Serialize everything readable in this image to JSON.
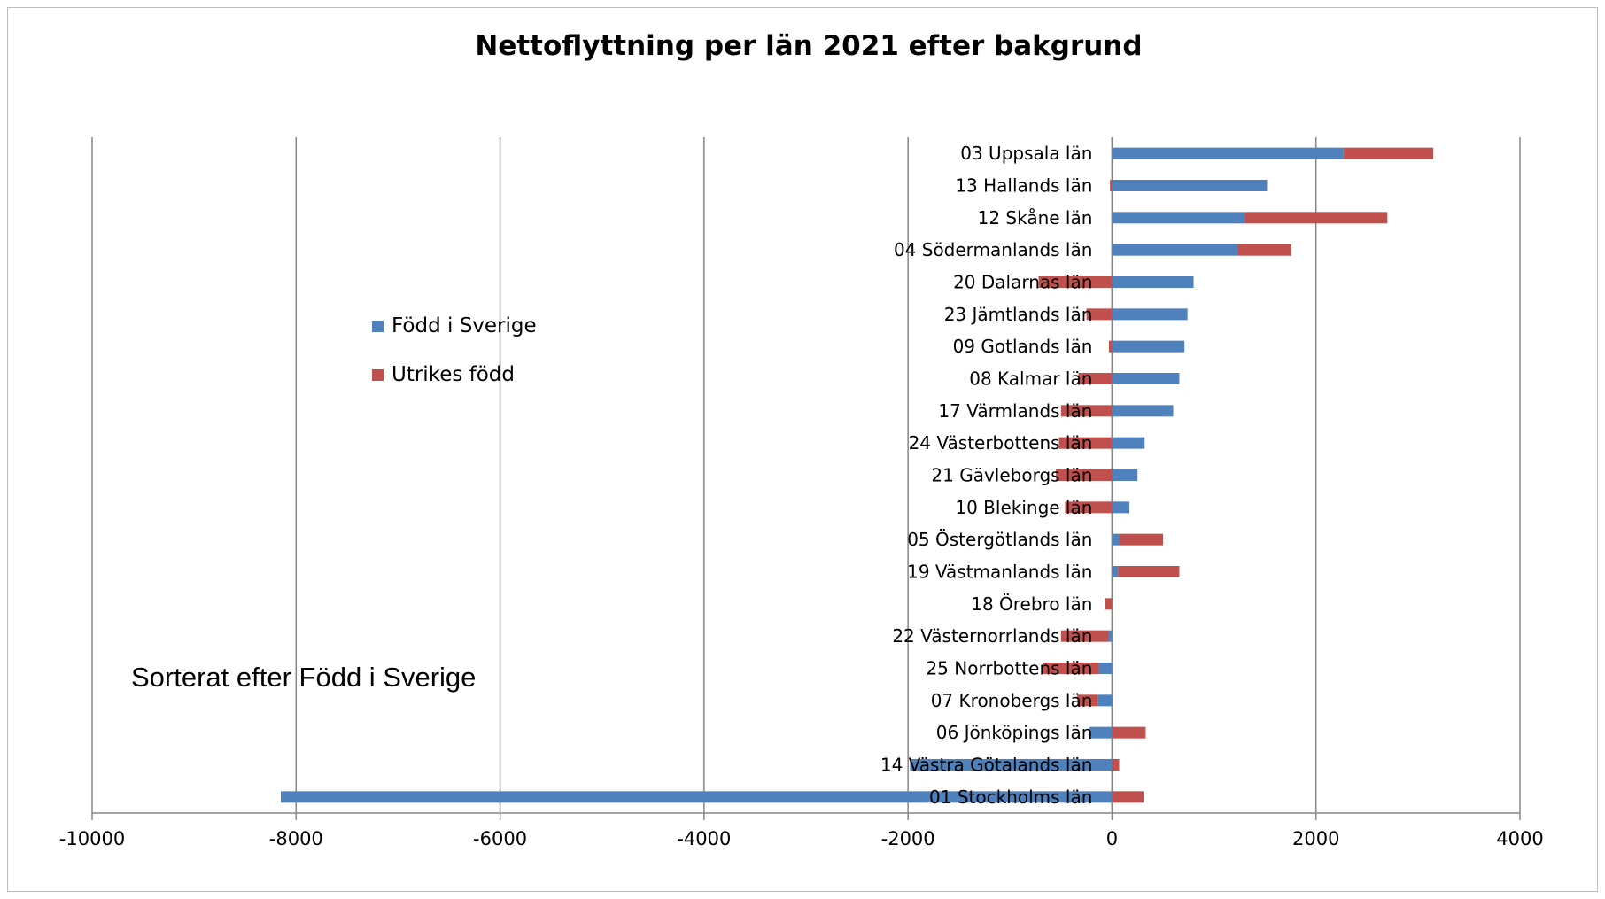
{
  "chart_data": {
    "type": "bar",
    "orientation": "horizontal",
    "stacked": true,
    "title": "Nettoflyttning per län 2021 efter bakgrund",
    "xlabel": "",
    "ylabel": "",
    "xlim": [
      -10000,
      4000
    ],
    "x_ticks": [
      "-10000",
      "-8000",
      "-6000",
      "-4000",
      "-2000",
      "0",
      "2000",
      "4000"
    ],
    "grid": "vertical major gridlines",
    "legend_position": "center-left",
    "note": "Sorterat efter Född i Sverige",
    "categories": [
      "03 Uppsala län",
      "13 Hallands län",
      "12 Skåne län",
      "04 Södermanlands län",
      "20 Dalarnas län",
      "23 Jämtlands län",
      "09 Gotlands län",
      "08 Kalmar län",
      "17 Värmlands län",
      "24 Västerbottens län",
      "21 Gävleborgs län",
      "10 Blekinge län",
      "05 Östergötlands län",
      "19 Västmanlands län",
      "18 Örebro län",
      "22 Västernorrlands län",
      "25 Norrbottens län",
      "07 Kronobergs län",
      "06 Jönköpings län",
      "14 Västra Götalands län",
      "01 Stockholms län"
    ],
    "series": [
      {
        "name": "Född i Sverige",
        "color": "#4f81bd",
        "values": [
          2270,
          1520,
          1300,
          1230,
          800,
          740,
          710,
          660,
          600,
          320,
          250,
          170,
          70,
          60,
          0,
          -30,
          -130,
          -140,
          -220,
          -1980,
          -8150
        ]
      },
      {
        "name": "Utrikes född",
        "color": "#c0504d",
        "values": [
          880,
          -20,
          1400,
          530,
          -720,
          -250,
          -30,
          -330,
          -500,
          -520,
          -550,
          -460,
          430,
          600,
          -70,
          -470,
          -550,
          -200,
          330,
          70,
          310
        ]
      }
    ]
  }
}
